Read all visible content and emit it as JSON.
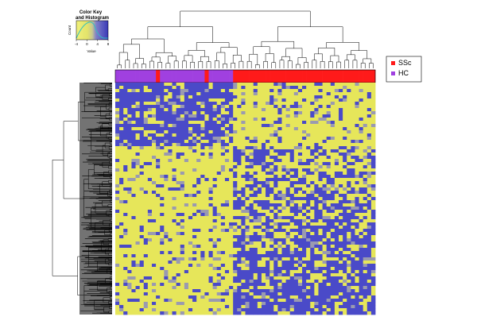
{
  "chart_data": {
    "type": "heatmap",
    "title": "",
    "color_key": {
      "title_line1": "Color Key",
      "title_line2": "and Histogram",
      "ylabel": "Count",
      "xlabel": "Value",
      "ticks": [
        "-4",
        "0",
        "4",
        "8"
      ],
      "colors": {
        "low": "#e6e65a",
        "mid": "#cccc66",
        "high": "#4a4ac8"
      }
    },
    "legend": {
      "placement": "right",
      "entries": [
        {
          "label": "SSc",
          "color": "#ff1a1a"
        },
        {
          "label": "HC",
          "color": "#a040e0"
        }
      ]
    },
    "column_groups": [
      {
        "label": "HC",
        "count": 10
      },
      {
        "label": "SSc",
        "count": 1
      },
      {
        "label": "HC",
        "count": 11
      },
      {
        "label": "SSc",
        "count": 1
      },
      {
        "label": "HC",
        "count": 6
      },
      {
        "label": "SSc",
        "count": 35
      }
    ],
    "value_range": [
      -4,
      8
    ],
    "row_dendrogram": true,
    "column_dendrogram": true
  }
}
